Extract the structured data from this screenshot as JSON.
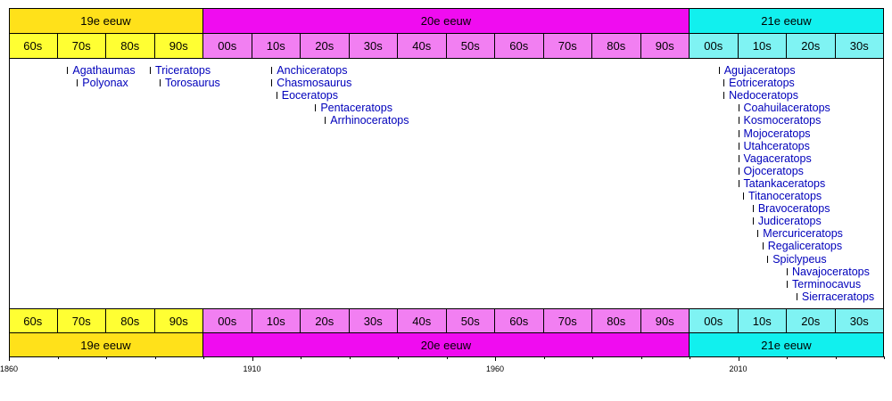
{
  "chart_data": {
    "type": "timeline",
    "xlim": [
      1860,
      2040
    ],
    "axis_ticks": [
      "1860",
      "1910",
      "1960",
      "2010"
    ],
    "centuries": [
      {
        "label": "19e eeuw",
        "start": 1860,
        "end": 1900,
        "color": "#ffe11a"
      },
      {
        "label": "20e eeuw",
        "start": 1900,
        "end": 2000,
        "color": "#f00cf0"
      },
      {
        "label": "21e eeuw",
        "start": 2000,
        "end": 2040,
        "color": "#11f0ee"
      }
    ],
    "decades": [
      {
        "label": "60s",
        "start": 1860,
        "end": 1870,
        "color": "#ffff33"
      },
      {
        "label": "70s",
        "start": 1870,
        "end": 1880,
        "color": "#ffff33"
      },
      {
        "label": "80s",
        "start": 1880,
        "end": 1890,
        "color": "#ffff33"
      },
      {
        "label": "90s",
        "start": 1890,
        "end": 1900,
        "color": "#ffff33"
      },
      {
        "label": "00s",
        "start": 1900,
        "end": 1910,
        "color": "#f27ff2"
      },
      {
        "label": "10s",
        "start": 1910,
        "end": 1920,
        "color": "#f27ff2"
      },
      {
        "label": "20s",
        "start": 1920,
        "end": 1930,
        "color": "#f27ff2"
      },
      {
        "label": "30s",
        "start": 1930,
        "end": 1940,
        "color": "#f27ff2"
      },
      {
        "label": "40s",
        "start": 1940,
        "end": 1950,
        "color": "#f27ff2"
      },
      {
        "label": "50s",
        "start": 1950,
        "end": 1960,
        "color": "#f27ff2"
      },
      {
        "label": "60s",
        "start": 1960,
        "end": 1970,
        "color": "#f27ff2"
      },
      {
        "label": "70s",
        "start": 1970,
        "end": 1980,
        "color": "#f27ff2"
      },
      {
        "label": "80s",
        "start": 1980,
        "end": 1990,
        "color": "#f27ff2"
      },
      {
        "label": "90s",
        "start": 1990,
        "end": 2000,
        "color": "#f27ff2"
      },
      {
        "label": "00s",
        "start": 2000,
        "end": 2010,
        "color": "#7ff3f3"
      },
      {
        "label": "10s",
        "start": 2010,
        "end": 2020,
        "color": "#7ff3f3"
      },
      {
        "label": "20s",
        "start": 2020,
        "end": 2030,
        "color": "#7ff3f3"
      },
      {
        "label": "30s",
        "start": 2030,
        "end": 2040,
        "color": "#7ff3f3"
      }
    ],
    "events": [
      {
        "label": "Agathaumas",
        "year": 1872
      },
      {
        "label": "Polyonax",
        "year": 1874
      },
      {
        "label": "Triceratops",
        "year": 1889
      },
      {
        "label": "Torosaurus",
        "year": 1891
      },
      {
        "label": "Anchiceratops",
        "year": 1914
      },
      {
        "label": "Chasmosaurus",
        "year": 1914
      },
      {
        "label": "Eoceratops",
        "year": 1915
      },
      {
        "label": "Pentaceratops",
        "year": 1923
      },
      {
        "label": "Arrhinoceratops",
        "year": 1925
      },
      {
        "label": "Agujaceratops",
        "year": 2006
      },
      {
        "label": "Eotriceratops",
        "year": 2007
      },
      {
        "label": "Nedoceratops",
        "year": 2007
      },
      {
        "label": "Coahuilaceratops",
        "year": 2010
      },
      {
        "label": "Kosmoceratops",
        "year": 2010
      },
      {
        "label": "Mojoceratops",
        "year": 2010
      },
      {
        "label": "Utahceratops",
        "year": 2010
      },
      {
        "label": "Vagaceratops",
        "year": 2010
      },
      {
        "label": "Ojoceratops",
        "year": 2010
      },
      {
        "label": "Tatankaceratops",
        "year": 2010
      },
      {
        "label": "Titanoceratops",
        "year": 2011
      },
      {
        "label": "Bravoceratops",
        "year": 2013
      },
      {
        "label": "Judiceratops",
        "year": 2013
      },
      {
        "label": "Mercuriceratops",
        "year": 2014
      },
      {
        "label": "Regaliceratops",
        "year": 2015
      },
      {
        "label": "Spiclypeus",
        "year": 2016
      },
      {
        "label": "Navajoceratops",
        "year": 2020
      },
      {
        "label": "Terminocavus",
        "year": 2020
      },
      {
        "label": "Sierraceratops",
        "year": 2022
      }
    ]
  }
}
